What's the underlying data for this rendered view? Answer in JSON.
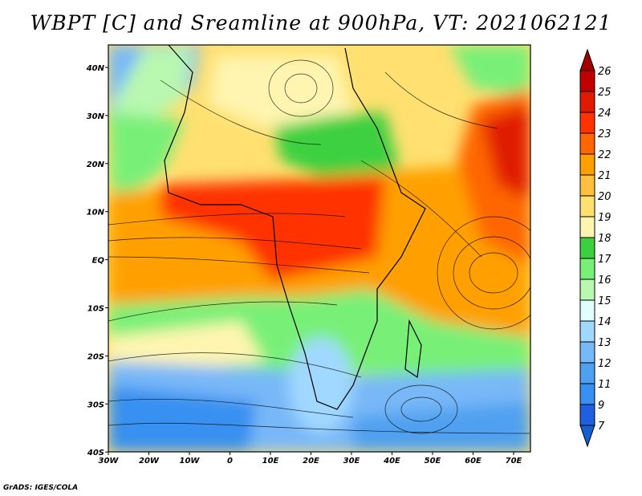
{
  "title": "WBPT [C] and Sreamline at 900hPa, VT: 2021062121",
  "credit": "GrADS: IGES/COLA",
  "x_ticks": [
    "30W",
    "20W",
    "10W",
    "0",
    "10E",
    "20E",
    "30E",
    "40E",
    "50E",
    "60E",
    "70E"
  ],
  "y_ticks": [
    "40N",
    "30N",
    "20N",
    "10N",
    "EQ",
    "10S",
    "20S",
    "30S",
    "40S"
  ],
  "colorbar": {
    "labels": [
      "26",
      "25",
      "24",
      "23",
      "22",
      "21",
      "20",
      "19",
      "18",
      "17",
      "16",
      "15",
      "14",
      "13",
      "12",
      "11",
      "9",
      "7"
    ],
    "colors": [
      "#c00000",
      "#e01a00",
      "#ff3300",
      "#ff6600",
      "#ffa000",
      "#ffc040",
      "#ffe070",
      "#fff5b0",
      "#3cd040",
      "#78f078",
      "#b8f8b0",
      "#e0ffff",
      "#a0d8ff",
      "#78b8f8",
      "#50a0f0",
      "#3890f0",
      "#2060e0"
    ],
    "top_color": "#a50000",
    "bottom_color": "#1560d0"
  }
}
